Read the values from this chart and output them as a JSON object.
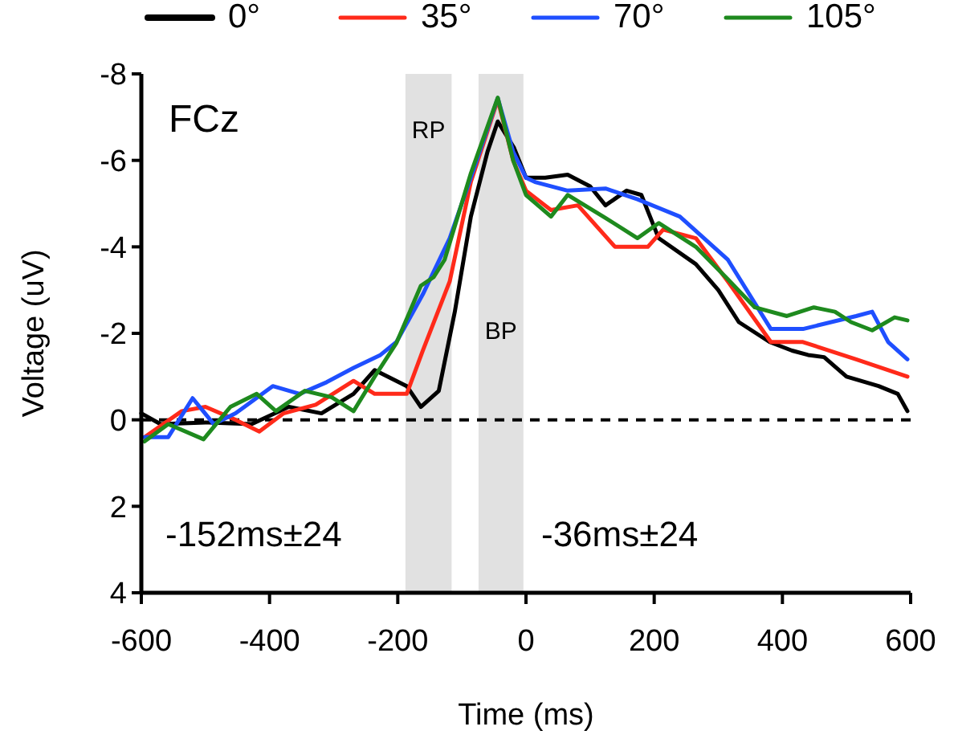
{
  "chart_data": {
    "type": "line",
    "xlabel": "Time (ms)",
    "ylabel": "Voltage (uV)",
    "xlim": [
      -600,
      600
    ],
    "xticks": [
      -600,
      -400,
      -200,
      0,
      200,
      400,
      600
    ],
    "ylim": [
      4,
      -8
    ],
    "yticks": [
      4,
      2,
      0,
      -2,
      -4,
      -6,
      -8
    ],
    "grid": false,
    "legend": "top",
    "line_style": "solid",
    "series": [
      {
        "name": "0°",
        "color": "#000000",
        "x": [
          -600,
          -570,
          -495,
          -428,
          -370,
          -319,
          -269,
          -236,
          -186,
          -164,
          -136,
          -111,
          -86,
          -60,
          -44,
          -19,
          0,
          30,
          65,
          100,
          124,
          157,
          180,
          207,
          265,
          300,
          332,
          380,
          415,
          440,
          465,
          500,
          550,
          580,
          595
        ],
        "values": [
          -0.15,
          0.1,
          0.06,
          0.1,
          -0.3,
          -0.15,
          -0.6,
          -1.15,
          -0.78,
          -0.3,
          -0.67,
          -2.5,
          -4.7,
          -6.2,
          -6.9,
          -6.3,
          -5.6,
          -5.6,
          -5.67,
          -5.4,
          -4.96,
          -5.3,
          -5.2,
          -4.2,
          -3.6,
          -3.0,
          -2.26,
          -1.8,
          -1.6,
          -1.5,
          -1.45,
          -1.0,
          -0.78,
          -0.6,
          -0.2
        ]
      },
      {
        "name": "35°",
        "color": "#ff2a1a",
        "x": [
          -595,
          -537,
          -500,
          -453,
          -416,
          -378,
          -328,
          -269,
          -236,
          -186,
          -161,
          -119,
          -86,
          -44,
          -20,
          0,
          39,
          81,
          139,
          190,
          214,
          265,
          315,
          382,
          432,
          515,
          595
        ],
        "values": [
          0.4,
          -0.2,
          -0.3,
          0,
          0.27,
          -0.15,
          -0.35,
          -0.9,
          -0.6,
          -0.6,
          -1.6,
          -3.2,
          -5.5,
          -7.4,
          -6.0,
          -5.3,
          -4.85,
          -4.96,
          -4.0,
          -4.0,
          -4.4,
          -4.2,
          -3.2,
          -1.8,
          -1.8,
          -1.4,
          -1.0
        ]
      },
      {
        "name": "70°",
        "color": "#1f4fff",
        "x": [
          -595,
          -558,
          -520,
          -487,
          -453,
          -395,
          -353,
          -311,
          -269,
          -227,
          -202,
          -161,
          -119,
          -86,
          -44,
          -20,
          0,
          14,
          65,
          124,
          174,
          240,
          315,
          382,
          432,
          515,
          540,
          565,
          595
        ],
        "values": [
          0.4,
          0.4,
          -0.5,
          0.1,
          -0.15,
          -0.78,
          -0.6,
          -0.87,
          -1.2,
          -1.5,
          -1.8,
          -2.9,
          -4.2,
          -5.6,
          -7.44,
          -6.2,
          -5.6,
          -5.5,
          -5.3,
          -5.35,
          -5.1,
          -4.7,
          -3.7,
          -2.1,
          -2.1,
          -2.4,
          -2.5,
          -1.8,
          -1.4
        ]
      },
      {
        "name": "105°",
        "color": "#1e8a1e",
        "x": [
          -595,
          -558,
          -503,
          -461,
          -420,
          -390,
          -345,
          -303,
          -269,
          -236,
          -202,
          -164,
          -144,
          -127,
          -86,
          -44,
          -20,
          0,
          39,
          65,
          124,
          174,
          207,
          265,
          315,
          357,
          407,
          449,
          482,
          507,
          540,
          575,
          595
        ],
        "values": [
          0.5,
          0.1,
          0.45,
          -0.3,
          -0.6,
          -0.2,
          -0.67,
          -0.52,
          -0.2,
          -1.0,
          -1.78,
          -3.1,
          -3.3,
          -3.7,
          -5.7,
          -7.45,
          -6.0,
          -5.2,
          -4.7,
          -5.2,
          -4.67,
          -4.2,
          -4.55,
          -4.0,
          -3.25,
          -2.6,
          -2.4,
          -2.6,
          -2.5,
          -2.26,
          -2.07,
          -2.37,
          -2.3
        ]
      }
    ],
    "ref_lines": [
      {
        "axis": "y",
        "value": 0,
        "color": "#000000",
        "line_style": "dashed"
      }
    ],
    "bands": [
      {
        "axis": "x",
        "from": -188,
        "to": -116,
        "label": "RP",
        "color": "#d9d9d9"
      },
      {
        "axis": "x",
        "from": -74,
        "to": -4,
        "label": "BP",
        "color": "#d9d9d9"
      }
    ],
    "annotations": [
      "FCz",
      "-152ms±24",
      "-36ms±24"
    ]
  }
}
